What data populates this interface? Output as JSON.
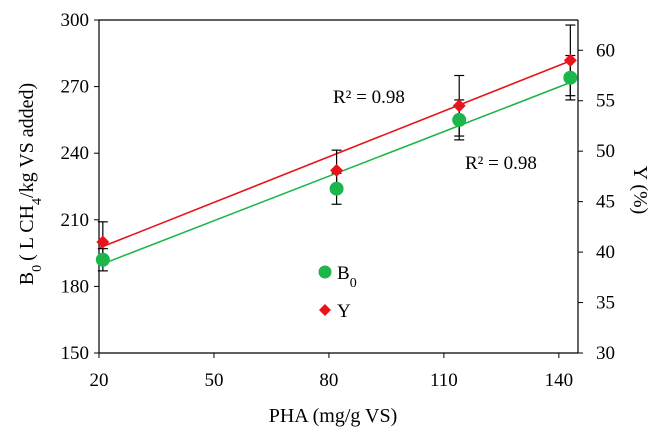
{
  "chart_data": {
    "type": "scatter",
    "xlabel": "PHA (mg/g VS)",
    "ylabel_left": {
      "pre": "B",
      "sub0": "0",
      "mid": "( L CH",
      "sub1": "4",
      "post": "/kg VS added)"
    },
    "ylabel_right": "Y (%)",
    "xlim": [
      20,
      145
    ],
    "ylim_left": [
      150,
      300
    ],
    "ylim_right": [
      30,
      63
    ],
    "x_ticks": [
      20,
      50,
      80,
      110,
      140
    ],
    "y_left_ticks": [
      150,
      180,
      210,
      240,
      270,
      300
    ],
    "y_right_ticks": [
      30,
      35,
      40,
      45,
      50,
      55,
      60
    ],
    "grid": false,
    "legend_placement": "center",
    "series": [
      {
        "name": "B0",
        "legend_base": "B",
        "legend_sub": "0",
        "axis": "left",
        "marker": "circle",
        "color": "#1cb64a",
        "x": [
          21,
          82,
          114,
          143
        ],
        "y": [
          192,
          224,
          255,
          274
        ],
        "err": [
          5,
          7,
          9,
          10
        ],
        "trendline": {
          "x": [
            20,
            144
          ],
          "y": [
            189.5,
            272.5
          ]
        },
        "annotation": "R² = 0.98"
      },
      {
        "name": "Y",
        "legend_base": "Y",
        "legend_sub": "",
        "axis": "right",
        "marker": "diamond",
        "color": "#e8141b",
        "x": [
          21,
          82,
          114,
          143
        ],
        "y": [
          41.0,
          48.1,
          54.5,
          59.0
        ],
        "err": [
          2.0,
          2.0,
          3.0,
          3.5
        ],
        "trendline": {
          "x": [
            20,
            144
          ],
          "y": [
            40.4,
            59.1
          ]
        },
        "annotation": "R² = 0.98"
      }
    ]
  }
}
